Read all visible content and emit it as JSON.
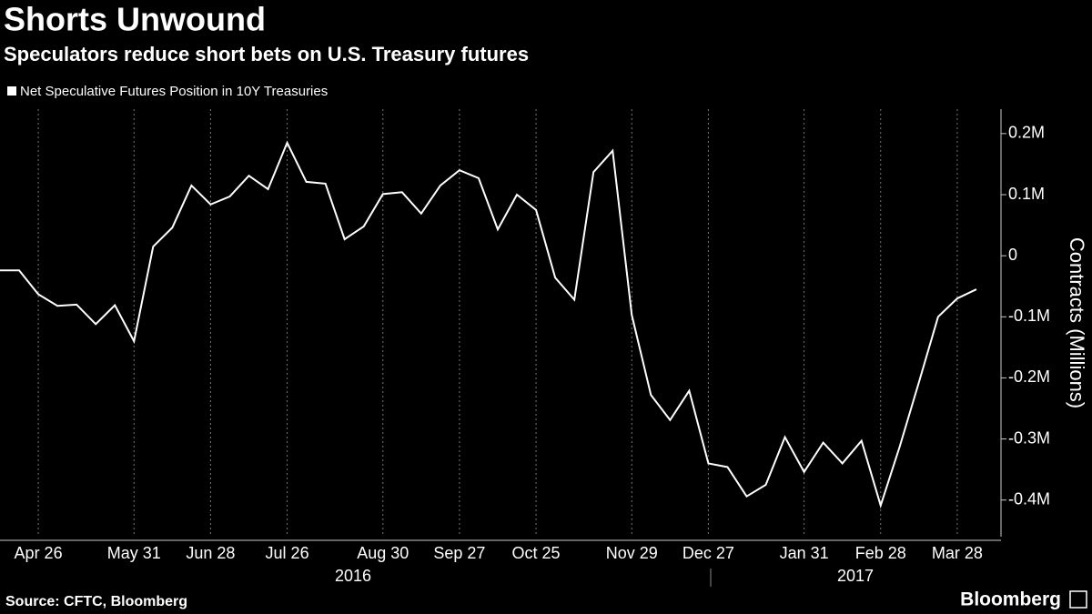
{
  "chart_data": {
    "type": "line",
    "title": "Shorts Unwound",
    "subtitle": "Speculators reduce short bets on U.S. Treasury futures",
    "y_label": "Contracts (Millions)",
    "source": "Source: CFTC, Bloomberg",
    "brand": "Bloomberg",
    "x": [
      "2016-04-12",
      "2016-04-19",
      "2016-04-26",
      "2016-05-03",
      "2016-05-10",
      "2016-05-17",
      "2016-05-24",
      "2016-05-31",
      "2016-06-07",
      "2016-06-14",
      "2016-06-21",
      "2016-06-28",
      "2016-07-05",
      "2016-07-12",
      "2016-07-19",
      "2016-07-26",
      "2016-08-02",
      "2016-08-09",
      "2016-08-16",
      "2016-08-23",
      "2016-08-30",
      "2016-09-06",
      "2016-09-13",
      "2016-09-20",
      "2016-09-27",
      "2016-10-04",
      "2016-10-11",
      "2016-10-18",
      "2016-10-25",
      "2016-11-01",
      "2016-11-08",
      "2016-11-15",
      "2016-11-22",
      "2016-11-29",
      "2016-12-06",
      "2016-12-13",
      "2016-12-20",
      "2016-12-27",
      "2017-01-03",
      "2017-01-10",
      "2017-01-17",
      "2017-01-24",
      "2017-01-31",
      "2017-02-07",
      "2017-02-14",
      "2017-02-21",
      "2017-02-28",
      "2017-03-07",
      "2017-03-14",
      "2017-03-21",
      "2017-03-28",
      "2017-04-04"
    ],
    "series": [
      {
        "name": "Net Speculative Futures Position in 10Y Treasuries",
        "color": "#ffffff",
        "values": [
          -0.024,
          -0.024,
          -0.063,
          -0.082,
          -0.08,
          -0.112,
          -0.081,
          -0.14,
          0.015,
          0.046,
          0.115,
          0.084,
          0.097,
          0.131,
          0.109,
          0.185,
          0.121,
          0.118,
          0.027,
          0.048,
          0.101,
          0.104,
          0.069,
          0.115,
          0.14,
          0.127,
          0.043,
          0.1,
          0.075,
          -0.036,
          -0.072,
          0.137,
          0.172,
          -0.097,
          -0.228,
          -0.269,
          -0.221,
          -0.34,
          -0.346,
          -0.394,
          -0.375,
          -0.297,
          -0.354,
          -0.306,
          -0.34,
          -0.303,
          -0.409,
          -0.312,
          -0.207,
          -0.1,
          -0.07,
          -0.055
        ]
      }
    ],
    "xlim": [
      "2016-04-12",
      "2017-04-13"
    ],
    "xticks": [
      {
        "value": "2016-04-26",
        "label": "Apr 26"
      },
      {
        "value": "2016-05-31",
        "label": "May 31"
      },
      {
        "value": "2016-06-28",
        "label": "Jun 28"
      },
      {
        "value": "2016-07-26",
        "label": "Jul 26"
      },
      {
        "value": "2016-08-30",
        "label": "Aug 30"
      },
      {
        "value": "2016-09-27",
        "label": "Sep 27"
      },
      {
        "value": "2016-10-25",
        "label": "Oct 25"
      },
      {
        "value": "2016-11-29",
        "label": "Nov 29"
      },
      {
        "value": "2016-12-27",
        "label": "Dec 27"
      },
      {
        "value": "2017-01-31",
        "label": "Jan 31"
      },
      {
        "value": "2017-02-28",
        "label": "Feb 28"
      },
      {
        "value": "2017-03-28",
        "label": "Mar 28"
      }
    ],
    "year_labels": [
      "2016",
      "2017"
    ],
    "ylim": [
      -0.46,
      0.24
    ],
    "yticks": [
      {
        "value": 0.2,
        "label": "0.2M"
      },
      {
        "value": 0.1,
        "label": "0.1M"
      },
      0,
      {
        "value": -0.1,
        "label": "-0.1M"
      },
      {
        "value": -0.2,
        "label": "-0.2M"
      },
      {
        "value": -0.3,
        "label": "-0.3M"
      },
      {
        "value": -0.4,
        "label": "-0.4M"
      }
    ],
    "grid": true
  }
}
